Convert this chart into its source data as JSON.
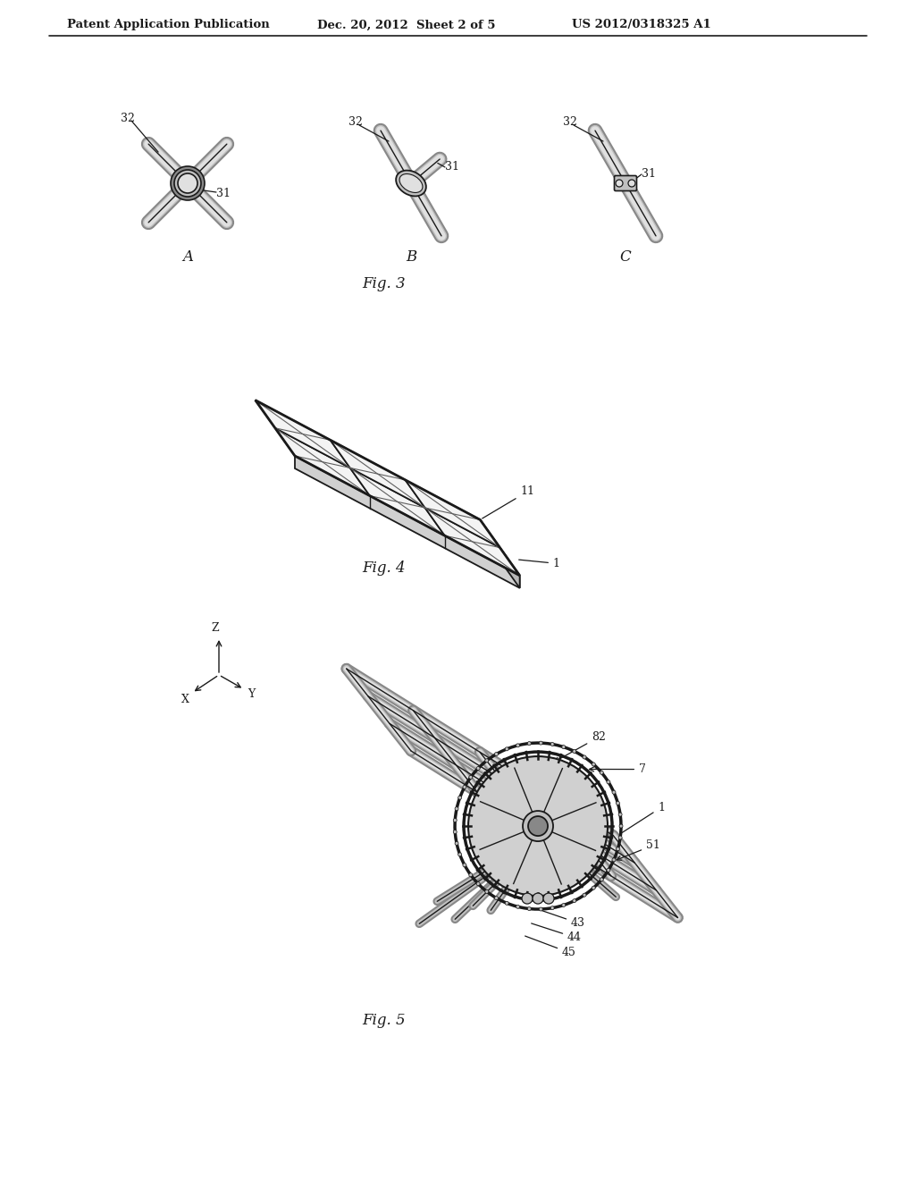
{
  "background_color": "#ffffff",
  "header_left": "Patent Application Publication",
  "header_mid": "Dec. 20, 2012  Sheet 2 of 5",
  "header_right": "US 2012/0318325 A1",
  "fig3_label": "Fig. 3",
  "fig4_label": "Fig. 4",
  "fig5_label": "Fig. 5",
  "line_color": "#1a1a1a",
  "gray_light": "#e0e0e0",
  "gray_mid": "#c0c0c0",
  "gray_dark": "#888888"
}
